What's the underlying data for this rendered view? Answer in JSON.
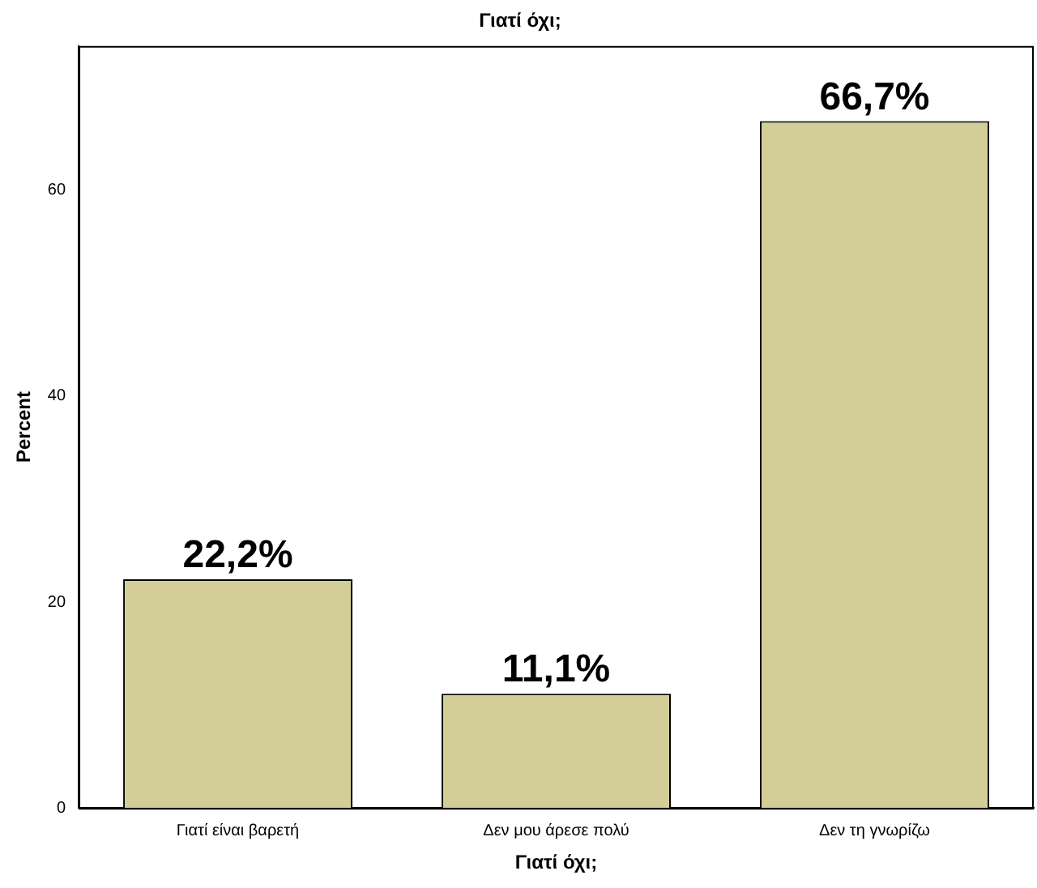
{
  "chart_data": {
    "type": "bar",
    "title": "Γιατί όχι;",
    "xlabel": "Γιατί όχι;",
    "ylabel": "Percent",
    "categories": [
      "Γιατί είναι βαρετή",
      "Δεν μου άρεσε πολύ",
      "Δεν τη γνωρίζω"
    ],
    "values": [
      22.2,
      11.1,
      66.7
    ],
    "color": "#d3ce97",
    "value_labels": [
      "22,2%",
      "11,1%",
      "66,7%"
    ],
    "ylim": [
      0,
      74
    ],
    "yticks": [
      0,
      20,
      40,
      60
    ],
    "grid": false,
    "legend": false
  }
}
